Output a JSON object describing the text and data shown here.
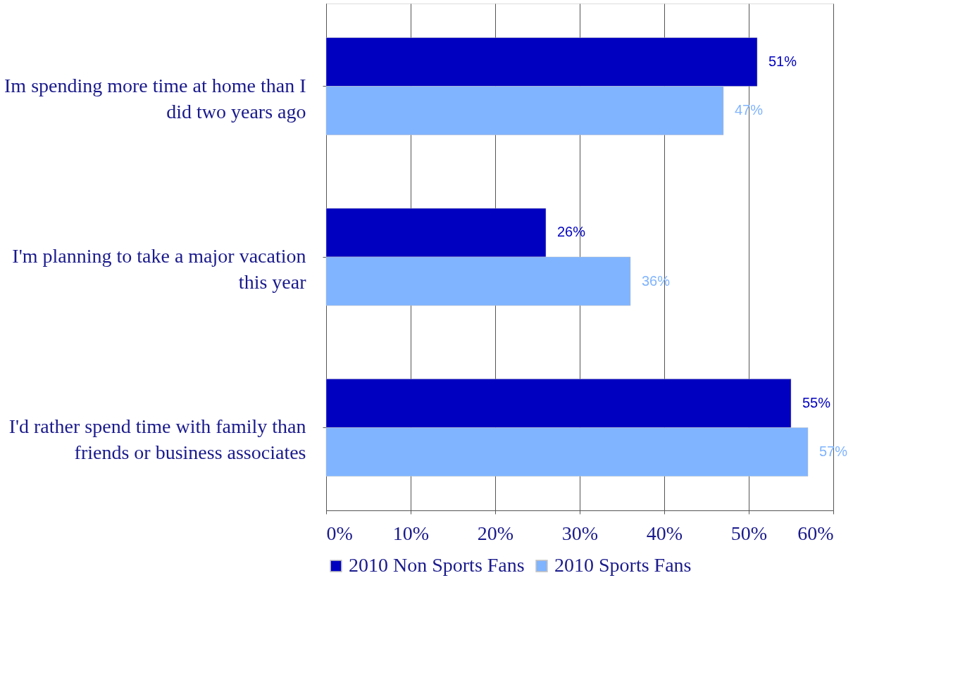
{
  "chart_data": {
    "type": "bar",
    "orientation": "horizontal",
    "categories": [
      "Im spending more time at home than I did two years ago",
      "I'm planning to take a major vacation this year",
      "I'd rather spend time with family than friends or business associates"
    ],
    "series": [
      {
        "name": "2010 Non Sports Fans",
        "color": "#0000c0",
        "values": [
          51,
          26,
          55
        ],
        "value_labels": [
          "51%",
          "26%",
          "55%"
        ]
      },
      {
        "name": "2010 Sports Fans",
        "color": "#80b4ff",
        "values": [
          47,
          36,
          57
        ],
        "value_labels": [
          "47%",
          "36%",
          "57%"
        ]
      }
    ],
    "xlim": [
      0,
      60
    ],
    "xticks": [
      {
        "value": 0,
        "label": "0%"
      },
      {
        "value": 10,
        "label": "10%"
      },
      {
        "value": 20,
        "label": "20%"
      },
      {
        "value": 30,
        "label": "30%"
      },
      {
        "value": 40,
        "label": "40%"
      },
      {
        "value": 50,
        "label": "50%"
      },
      {
        "value": 60,
        "label": "60%"
      }
    ],
    "grid": "x",
    "legend": "bottom"
  }
}
